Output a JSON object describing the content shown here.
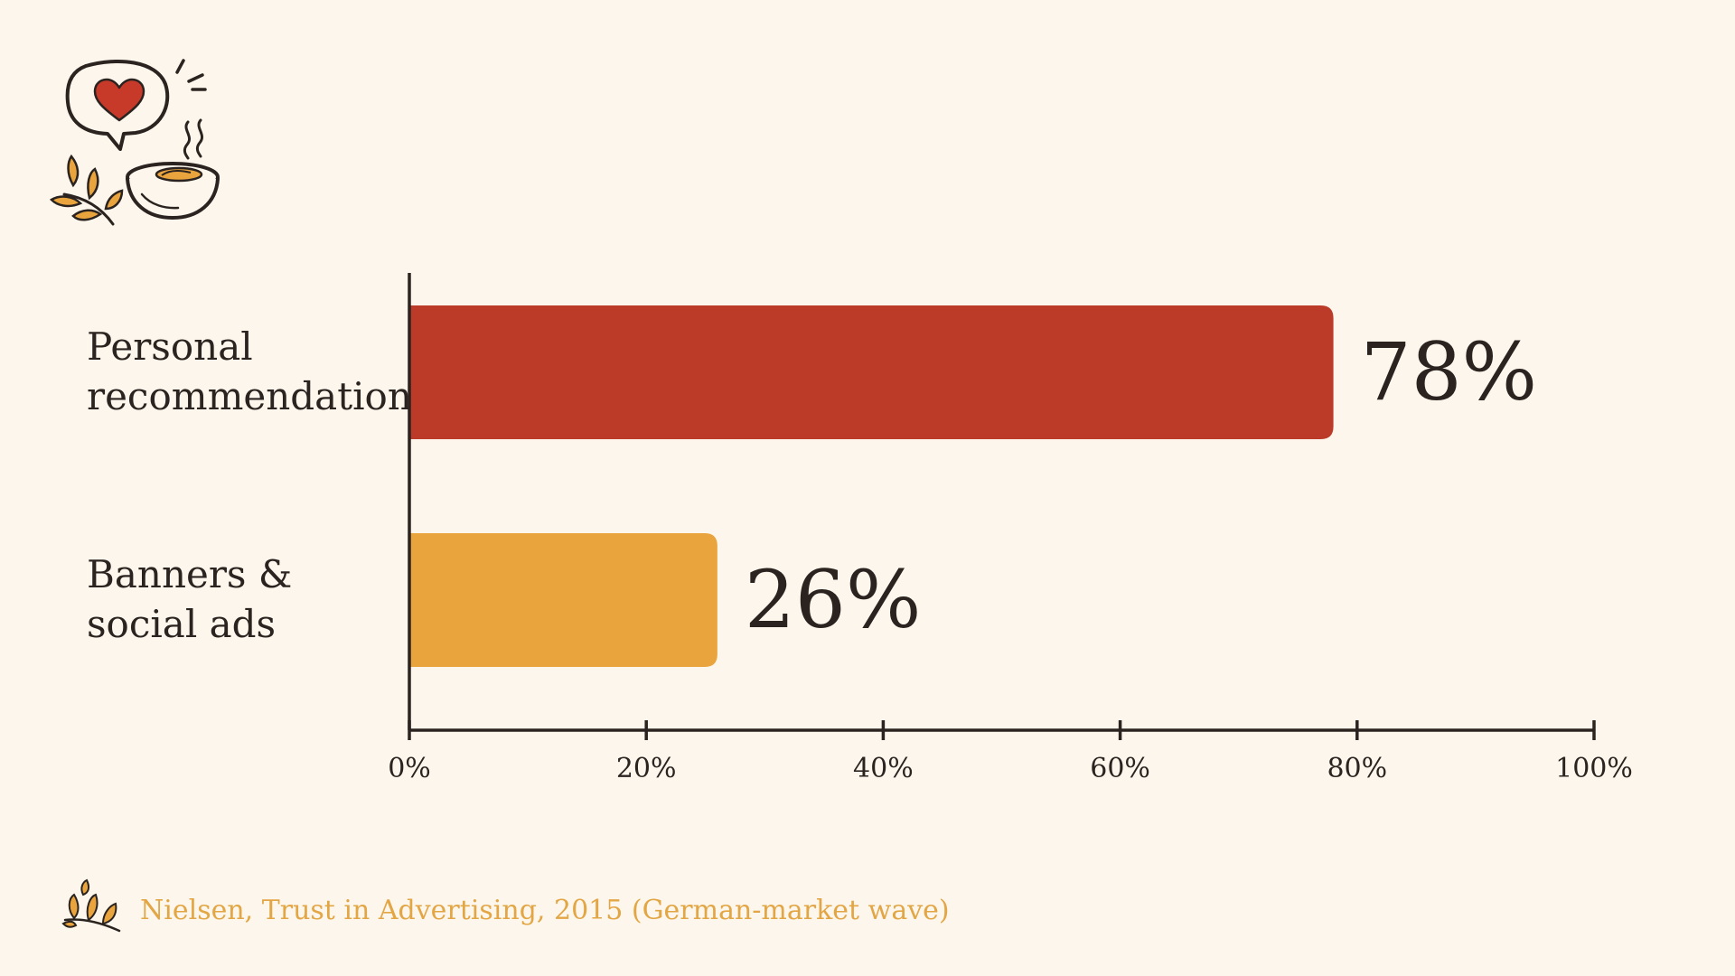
{
  "colors": {
    "background": "#fcf6ec",
    "ink": "#2b2320",
    "personal": "#bb3a28",
    "ads": "#e9a43d",
    "source_text": "#e3a645"
  },
  "icons": {
    "header": "heart-speech-bubble-and-soup-bowl-icon",
    "source": "leaf-sprig-icon"
  },
  "chart_data": {
    "type": "bar",
    "orientation": "horizontal",
    "categories": [
      [
        "Personal",
        "recommendations"
      ],
      [
        "Banners &",
        "social ads"
      ]
    ],
    "values": [
      78,
      26
    ],
    "value_labels": [
      "78%",
      "26%"
    ],
    "xlim": [
      0,
      100
    ],
    "xticks": [
      0,
      20,
      40,
      60,
      80,
      100
    ],
    "xtick_labels": [
      "0%",
      "20%",
      "40%",
      "60%",
      "80%",
      "100%"
    ],
    "grid": false,
    "legend": "none"
  },
  "source": "Nielsen, Trust in Advertising, 2015 (German-market wave)"
}
